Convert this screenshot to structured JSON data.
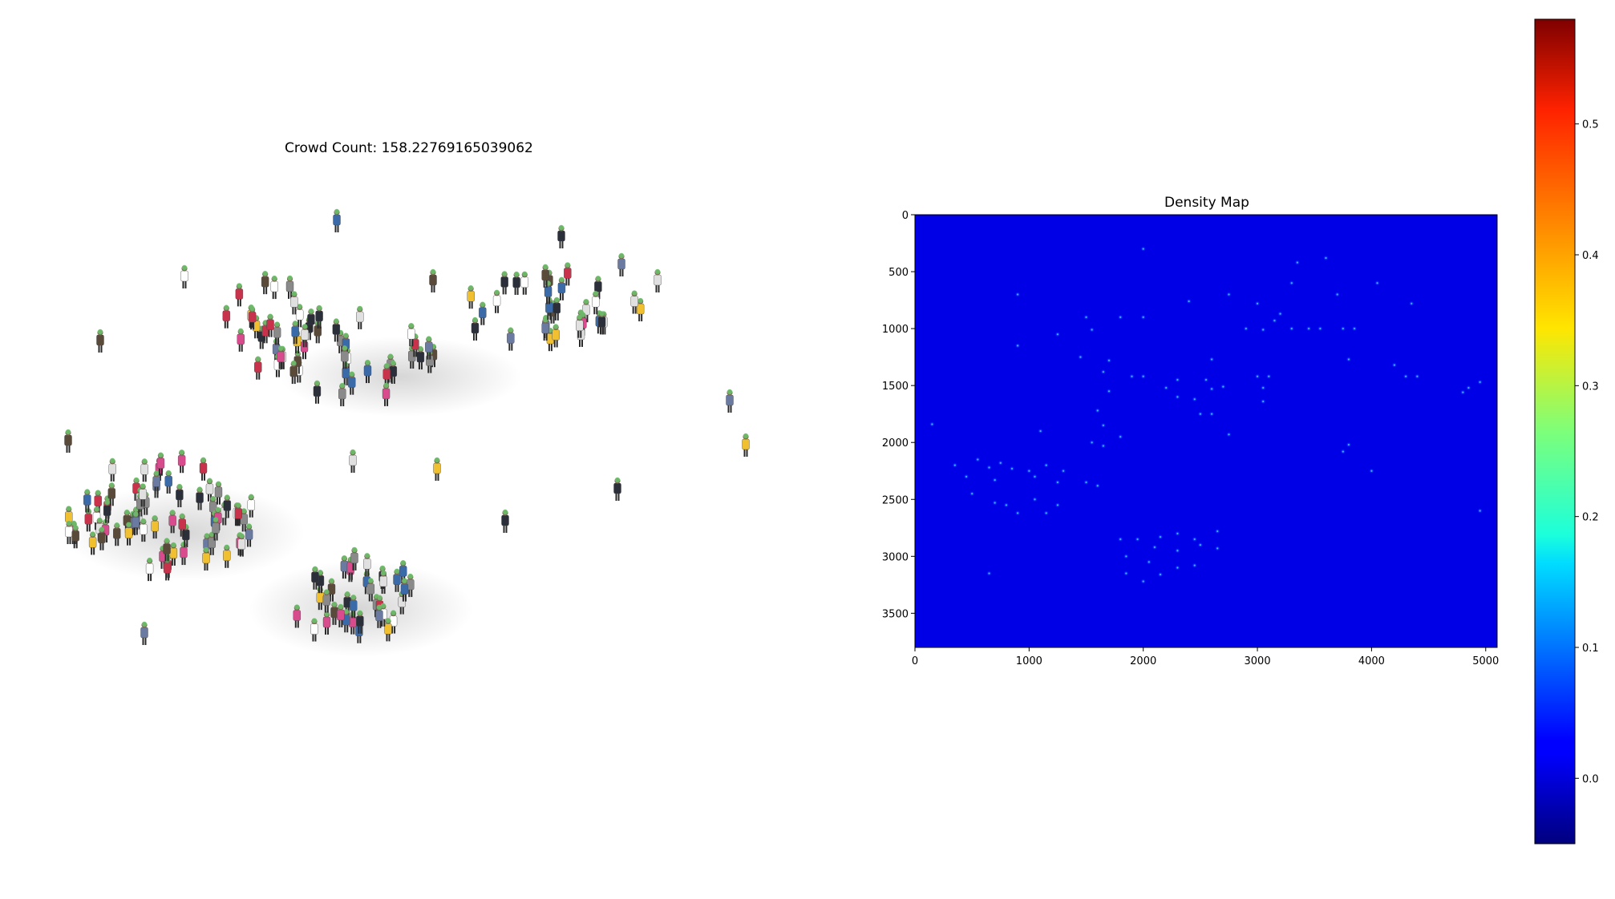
{
  "left_panel": {
    "title": "Crowd Count: 158.22769165039062"
  },
  "chart_data": [
    {
      "type": "heatmap",
      "title": "Density Map",
      "xlabel": "",
      "ylabel": "",
      "xlim": [
        0,
        5100
      ],
      "ylim": [
        3800,
        0
      ],
      "xticks": [
        0,
        1000,
        2000,
        3000,
        4000,
        5000
      ],
      "yticks": [
        0,
        500,
        1000,
        1500,
        2000,
        2500,
        3000,
        3500
      ],
      "colormap": "jet",
      "background_value": 0.0,
      "points": [
        [
          2000,
          300
        ],
        [
          3600,
          380
        ],
        [
          3350,
          420
        ],
        [
          4050,
          600
        ],
        [
          3300,
          600
        ],
        [
          2750,
          700
        ],
        [
          3700,
          700
        ],
        [
          900,
          700
        ],
        [
          4350,
          780
        ],
        [
          3000,
          780
        ],
        [
          2400,
          760
        ],
        [
          1500,
          900
        ],
        [
          1800,
          900
        ],
        [
          2000,
          900
        ],
        [
          3200,
          870
        ],
        [
          3150,
          930
        ],
        [
          3300,
          1000
        ],
        [
          3450,
          1000
        ],
        [
          3550,
          1000
        ],
        [
          3750,
          1000
        ],
        [
          3850,
          1000
        ],
        [
          2900,
          1000
        ],
        [
          3050,
          1010
        ],
        [
          1550,
          1010
        ],
        [
          1250,
          1050
        ],
        [
          900,
          1150
        ],
        [
          1450,
          1250
        ],
        [
          1700,
          1280
        ],
        [
          2600,
          1270
        ],
        [
          3800,
          1270
        ],
        [
          4200,
          1320
        ],
        [
          1650,
          1380
        ],
        [
          1900,
          1420
        ],
        [
          2000,
          1420
        ],
        [
          2300,
          1450
        ],
        [
          2550,
          1450
        ],
        [
          3000,
          1420
        ],
        [
          3100,
          1420
        ],
        [
          4300,
          1420
        ],
        [
          4400,
          1420
        ],
        [
          2200,
          1520
        ],
        [
          2600,
          1530
        ],
        [
          2700,
          1510
        ],
        [
          3050,
          1520
        ],
        [
          4800,
          1560
        ],
        [
          4850,
          1520
        ],
        [
          4950,
          1470
        ],
        [
          1700,
          1550
        ],
        [
          2300,
          1600
        ],
        [
          2450,
          1620
        ],
        [
          3050,
          1640
        ],
        [
          2500,
          1750
        ],
        [
          2600,
          1750
        ],
        [
          1600,
          1720
        ],
        [
          1650,
          1850
        ],
        [
          1800,
          1950
        ],
        [
          1100,
          1900
        ],
        [
          1550,
          2000
        ],
        [
          1650,
          2030
        ],
        [
          2750,
          1930
        ],
        [
          3800,
          2020
        ],
        [
          3750,
          2080
        ],
        [
          350,
          2200
        ],
        [
          550,
          2150
        ],
        [
          650,
          2220
        ],
        [
          750,
          2180
        ],
        [
          850,
          2230
        ],
        [
          1000,
          2250
        ],
        [
          1150,
          2200
        ],
        [
          1300,
          2250
        ],
        [
          450,
          2300
        ],
        [
          700,
          2330
        ],
        [
          1050,
          2300
        ],
        [
          1250,
          2350
        ],
        [
          1500,
          2350
        ],
        [
          1600,
          2380
        ],
        [
          500,
          2450
        ],
        [
          700,
          2530
        ],
        [
          800,
          2550
        ],
        [
          1050,
          2500
        ],
        [
          900,
          2620
        ],
        [
          1150,
          2620
        ],
        [
          1250,
          2550
        ],
        [
          4000,
          2250
        ],
        [
          4950,
          2600
        ],
        [
          1800,
          2850
        ],
        [
          1950,
          2850
        ],
        [
          2150,
          2830
        ],
        [
          2300,
          2800
        ],
        [
          2450,
          2850
        ],
        [
          2650,
          2780
        ],
        [
          2100,
          2920
        ],
        [
          2300,
          2950
        ],
        [
          2500,
          2900
        ],
        [
          2650,
          2930
        ],
        [
          1850,
          3000
        ],
        [
          2050,
          3050
        ],
        [
          1850,
          3150
        ],
        [
          2000,
          3220
        ],
        [
          2150,
          3160
        ],
        [
          2300,
          3100
        ],
        [
          2450,
          3080
        ],
        [
          650,
          3150
        ],
        [
          150,
          1840
        ]
      ],
      "peak_value": 0.1
    },
    {
      "type": "colorbar",
      "colormap": "jet",
      "range": [
        -0.05,
        0.58
      ],
      "ticks": [
        0.0,
        0.1,
        0.2,
        0.3,
        0.4,
        0.5
      ],
      "tick_labels": [
        "0.0",
        "0.1",
        "0.2",
        "0.3",
        "0.4",
        "0.5"
      ]
    }
  ]
}
